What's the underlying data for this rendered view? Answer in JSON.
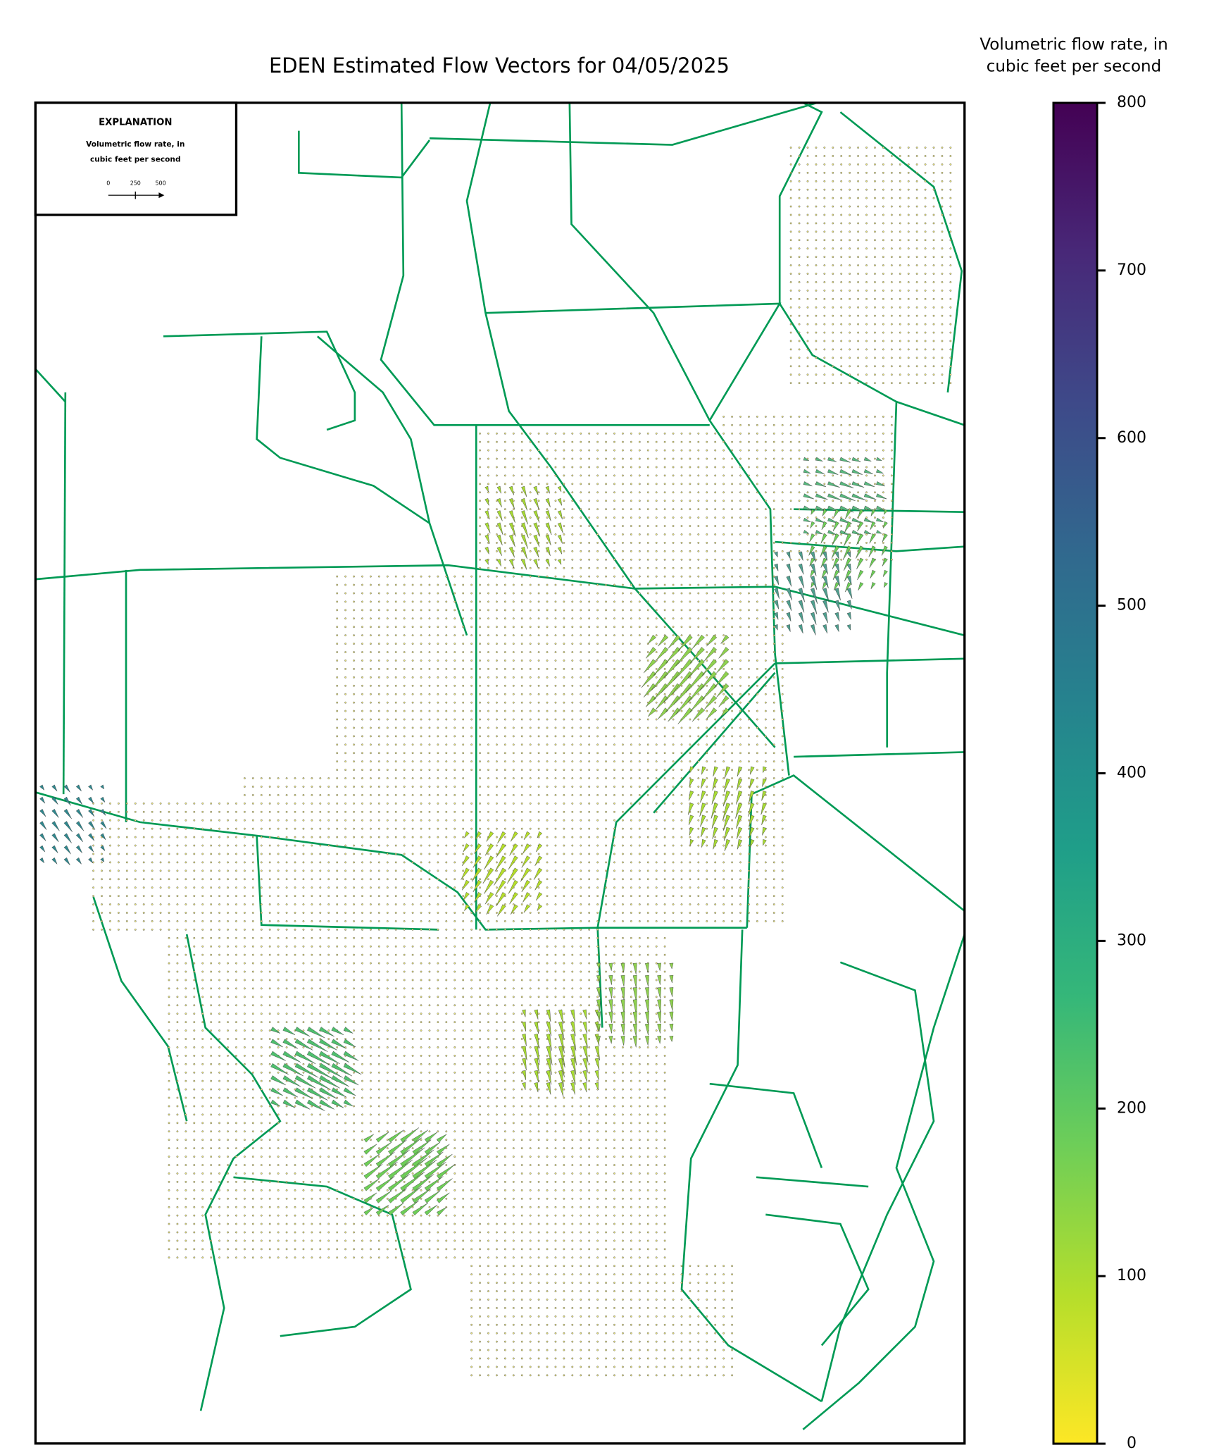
{
  "title": "EDEN Estimated Flow Vectors for 04/05/2025",
  "explanation": {
    "heading": "EXPLANATION",
    "text_lines": [
      "Volumetric flow rate, in",
      "cubic feet per second"
    ],
    "scale_labels": [
      0,
      250,
      500
    ]
  },
  "colorbar": {
    "title_lines": [
      "Volumetric flow rate, in",
      "cubic feet per second"
    ],
    "clim": [
      0,
      800
    ],
    "ticks": [
      0,
      100,
      200,
      300,
      400,
      500,
      600,
      700,
      800
    ],
    "colormap": [
      "#fde725",
      "#b5de2b",
      "#6ece58",
      "#35b779",
      "#1f9e89",
      "#26828e",
      "#31688e",
      "#3e4989",
      "#482878",
      "#440154"
    ]
  }
}
